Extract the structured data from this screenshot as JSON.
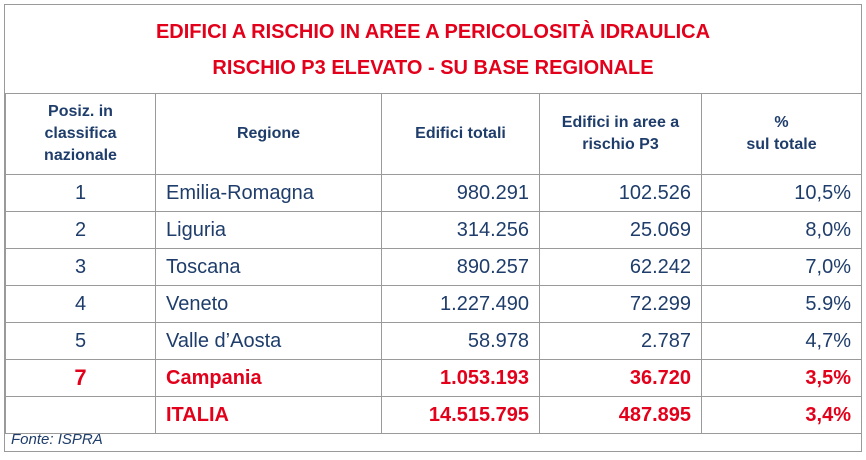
{
  "title": {
    "line1": "EDIFICI A RISCHIO IN AREE A PERICOLOSITÀ IDRAULICA",
    "line2": "RISCHIO P3 ELEVATO - SU BASE REGIONALE"
  },
  "table": {
    "headers": {
      "position": [
        "Posiz. in",
        "classifica",
        "nazionale"
      ],
      "region": "Regione",
      "total": "Edifici totali",
      "risk": [
        "Edifici in aree a",
        "rischio P3"
      ],
      "percent": [
        "%",
        "sul totale"
      ]
    },
    "rows": [
      {
        "pos": "1",
        "region": "Emilia-Romagna",
        "total": "980.291",
        "risk": "102.526",
        "pct": "10,5%"
      },
      {
        "pos": "2",
        "region": "Liguria",
        "total": "314.256",
        "risk": "25.069",
        "pct": "8,0%"
      },
      {
        "pos": "3",
        "region": "Toscana",
        "total": "890.257",
        "risk": "62.242",
        "pct": "7,0%"
      },
      {
        "pos": "4",
        "region": "Veneto",
        "total": "1.227.490",
        "risk": "72.299",
        "pct": "5.9%"
      },
      {
        "pos": "5",
        "region": "Valle d’Aosta",
        "total": "58.978",
        "risk": "2.787",
        "pct": "4,7%"
      },
      {
        "pos": "7",
        "region": "Campania",
        "total": "1.053.193",
        "risk": "36.720",
        "pct": "3,5%"
      },
      {
        "pos": "",
        "region": "ITALIA",
        "total": "14.515.795",
        "risk": "487.895",
        "pct": "3,4%"
      }
    ]
  },
  "source": "Fonte: ISPRA",
  "colors": {
    "accent_red": "#e3001b",
    "text_navy": "#1f3d6b",
    "border": "#9a9a9a"
  }
}
